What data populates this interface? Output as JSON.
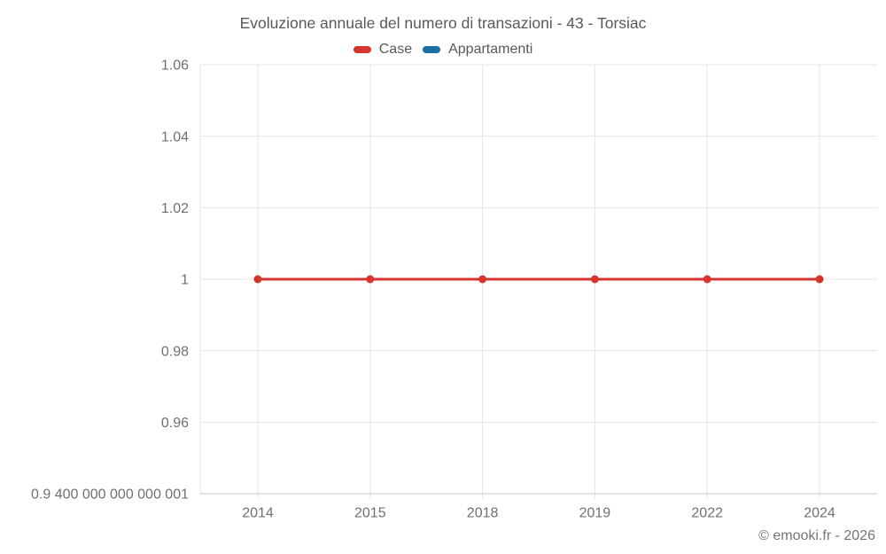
{
  "chart_data": {
    "type": "line",
    "title": "Evoluzione annuale del numero di transazioni - 43 - Torsiac",
    "xlabel": "",
    "ylabel": "",
    "categories": [
      "2014",
      "2015",
      "2018",
      "2019",
      "2022",
      "2024"
    ],
    "series": [
      {
        "name": "Case",
        "color": "#d6352e",
        "values": [
          1,
          1,
          1,
          1,
          1,
          1
        ]
      },
      {
        "name": "Appartamenti",
        "color": "#1b6ea5",
        "values": []
      }
    ],
    "y_ticks": [
      {
        "value": 0.9400000000000001,
        "label": "0.9 400 000 000 000 001"
      },
      {
        "value": 0.96,
        "label": "0.96"
      },
      {
        "value": 0.98,
        "label": "0.98"
      },
      {
        "value": 1,
        "label": "1"
      },
      {
        "value": 1.02,
        "label": "1.02"
      },
      {
        "value": 1.04,
        "label": "1.04"
      },
      {
        "value": 1.06,
        "label": "1.06"
      }
    ],
    "ylim": [
      0.9400000000000001,
      1.06
    ],
    "grid": true,
    "legend_position": "top"
  },
  "footer": {
    "copyright": "© emooki.fr - 2026"
  },
  "colors": {
    "grid": "#e6e6e6",
    "axis_line": "#c9c9c9",
    "tick_text": "#707070",
    "title_text": "#595959"
  }
}
